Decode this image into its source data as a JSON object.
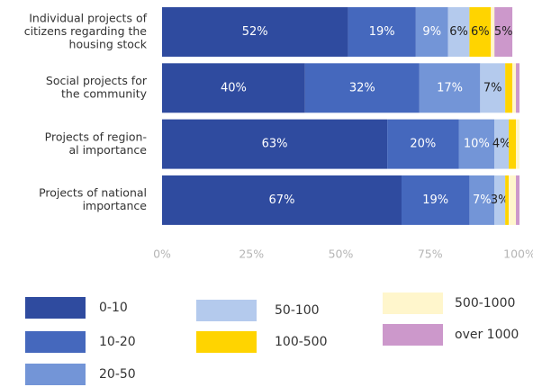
{
  "chart_data": {
    "type": "stacked-barh",
    "categories": [
      [
        "Individual projects of",
        "citizens regarding the",
        "housing stock"
      ],
      [
        "Social projects for",
        "the community"
      ],
      [
        "Projects of region-",
        "al importance"
      ],
      [
        "Projects of national",
        "importance"
      ]
    ],
    "series": [
      {
        "name": "0-10",
        "color": "#2f4b9f",
        "values": [
          52,
          40,
          63,
          67
        ],
        "value_labels": [
          "52%",
          "40%",
          "63%",
          "67%"
        ]
      },
      {
        "name": "10-20",
        "color": "#4568bd",
        "values": [
          19,
          32,
          20,
          19
        ],
        "value_labels": [
          "19%",
          "32%",
          "20%",
          "19%"
        ]
      },
      {
        "name": "20-50",
        "color": "#7395d7",
        "values": [
          9,
          17,
          10,
          7
        ],
        "value_labels": [
          "9%",
          "17%",
          "10%",
          "7%"
        ]
      },
      {
        "name": "50-100",
        "color": "#b4caed",
        "values": [
          6,
          7,
          4,
          3
        ],
        "value_labels": [
          "6%",
          "7%",
          "4%",
          "3%"
        ]
      },
      {
        "name": "100-500",
        "color": "#ffd400",
        "values": [
          6,
          2,
          2,
          1
        ],
        "value_labels": [
          "6%",
          null,
          null,
          null
        ]
      },
      {
        "name": "500-1000",
        "color": "#fff6cc",
        "values": [
          1,
          1,
          1,
          2
        ],
        "value_labels": [
          null,
          null,
          null,
          null
        ]
      },
      {
        "name": "over 1000",
        "color": "#cc98cb",
        "values": [
          5,
          1,
          0,
          1
        ],
        "value_labels": [
          "5%",
          null,
          null,
          null
        ]
      }
    ],
    "xlim": [
      0,
      100
    ],
    "xticks": [
      {
        "value": 0,
        "label": "0%"
      },
      {
        "value": 25,
        "label": "25%"
      },
      {
        "value": 50,
        "label": "50%"
      },
      {
        "value": 75,
        "label": "75%"
      },
      {
        "value": 100,
        "label": "100%"
      }
    ]
  }
}
